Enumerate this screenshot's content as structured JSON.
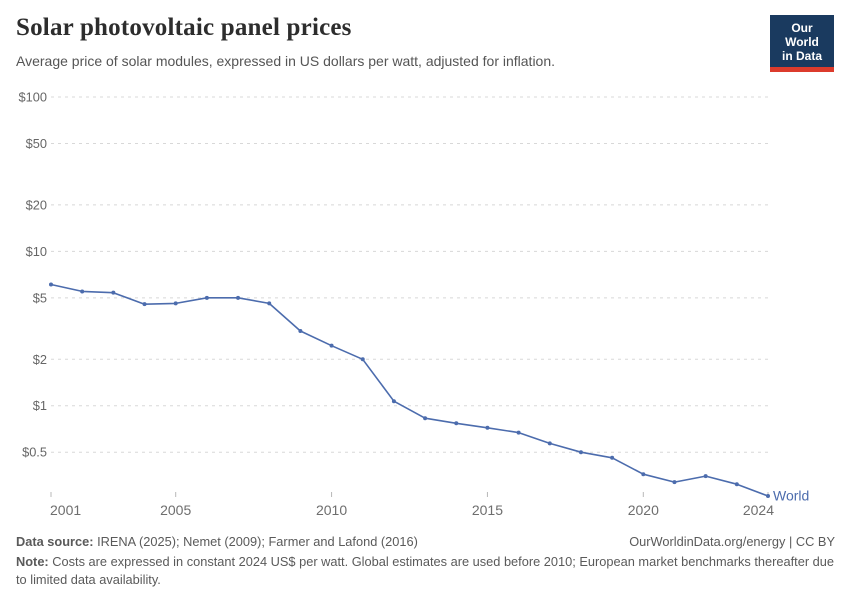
{
  "header": {
    "title": "Solar photovoltaic panel prices",
    "subtitle": "Average price of solar modules, expressed in US dollars per watt, adjusted for inflation.",
    "logo": {
      "line1": "Our World",
      "line2": "in Data"
    }
  },
  "chart_data": {
    "type": "line",
    "title": "Solar photovoltaic panel prices",
    "subtitle": "Average price of solar modules, expressed in US dollars per watt, adjusted for inflation.",
    "yscale": "log",
    "ylim": [
      0.5,
      100
    ],
    "xlim": [
      2001,
      2024
    ],
    "grid": "horizontal-dashed",
    "legend_position": "end-of-line-label",
    "x": [
      2001,
      2002,
      2003,
      2004,
      2005,
      2006,
      2007,
      2008,
      2009,
      2010,
      2011,
      2012,
      2013,
      2014,
      2015,
      2016,
      2017,
      2018,
      2019,
      2020,
      2021,
      2022,
      2023,
      2024
    ],
    "series": [
      {
        "name": "World",
        "values": [
          6.1,
          5.5,
          5.4,
          4.55,
          4.6,
          5.0,
          5.0,
          4.6,
          3.05,
          2.45,
          2.0,
          1.07,
          0.83,
          0.77,
          0.72,
          0.67,
          0.57,
          0.5,
          0.46,
          0.36,
          0.32,
          0.35,
          0.31,
          0.26
        ]
      }
    ],
    "yticks": {
      "values": [
        100,
        50,
        20,
        10,
        5,
        2,
        1,
        0.5
      ],
      "labels": [
        "$100",
        "$50",
        "$20",
        "$10",
        "$5",
        "$2",
        "$1",
        "$0.5"
      ]
    },
    "xticks": {
      "values": [
        2001,
        2005,
        2010,
        2015,
        2020,
        2024
      ],
      "labels": [
        "2001",
        "2005",
        "2010",
        "2015",
        "2020",
        "2024"
      ]
    }
  },
  "footer": {
    "datasource_label": "Data source:",
    "datasource_text": " IRENA (2025); Nemet (2009); Farmer and Lafond (2016)",
    "link": "OurWorldinData.org/energy | CC BY",
    "note_label": "Note:",
    "note_text": " Costs are expressed in constant 2024 US$ per watt. Global estimates are used before 2010; European market benchmarks thereafter due to limited data availability."
  },
  "colors": {
    "accent": "#4c6cad",
    "series_label": "#4c6cad",
    "grid": "#d8d8d8",
    "ytick_text": "#666666",
    "xtick_text": "#6e6e6e",
    "tick_mark": "#b8b8b8",
    "logo_bg": "#1a3a5f",
    "logo_bar": "#dc3b2c"
  }
}
